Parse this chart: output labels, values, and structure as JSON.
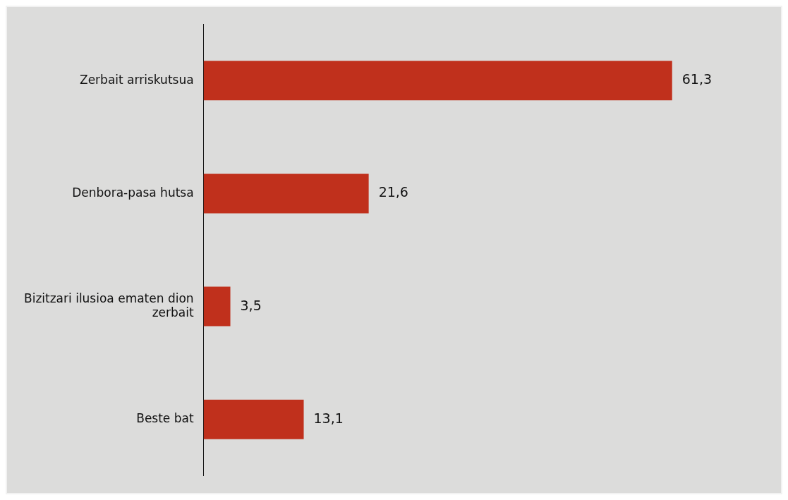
{
  "chart_data": {
    "type": "bar",
    "orientation": "horizontal",
    "categories": [
      "Zerbait arriskutsua",
      "Denbora-pasa hutsa",
      "Bizitzari ilusioa ematen dion zerbait",
      "Beste bat"
    ],
    "values": [
      61.3,
      21.6,
      3.5,
      13.1
    ],
    "value_labels": [
      "61,3",
      "21,6",
      "3,5",
      "13,1"
    ],
    "color": "#c0301c",
    "legend": false
  }
}
